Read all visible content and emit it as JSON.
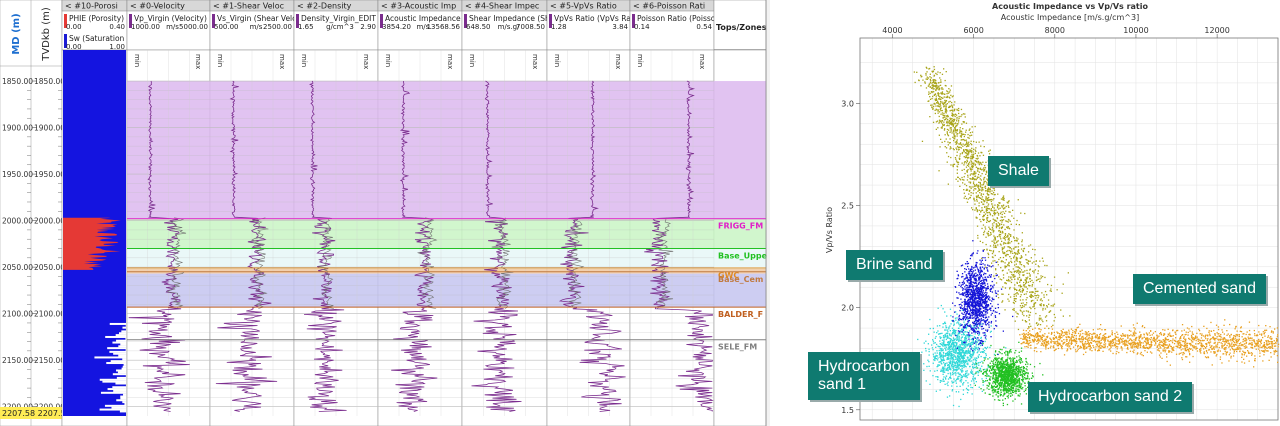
{
  "well_log": {
    "depth_header": {
      "md": "MD (m)",
      "tvd": "TVDkb (m)"
    },
    "depth_ticks": [
      1850,
      1900,
      1950,
      2000,
      2050,
      2100,
      2150,
      2200
    ],
    "depth_range": [
      1836,
      2210
    ],
    "bottom_readout": "2207.58  2207.5",
    "tracks": [
      {
        "title": "#10-Porosi",
        "curves": [
          {
            "name": "PHIE (Porosity)",
            "min": "0.00",
            "max": "0.40",
            "color": "#e53935"
          },
          {
            "name": "Sw (Saturation",
            "min": "0.00",
            "max": "1.00",
            "color": "#1a1ad4"
          }
        ]
      },
      {
        "title": "#0-Velocity",
        "curves": [
          {
            "name": "Vp_Virgin (Velocity)",
            "min": "1000.00",
            "unit": "m/s",
            "max": "5000.00"
          }
        ]
      },
      {
        "title": "#1-Shear Veloc",
        "curves": [
          {
            "name": "Vs_Virgin (Shear Velo",
            "min": "500.00",
            "unit": "m/s",
            "max": "2500.00"
          }
        ]
      },
      {
        "title": "#2-Density",
        "curves": [
          {
            "name": "Density_Virgin_EDIT",
            "min": "1.65",
            "unit": "g/cm^3",
            "max": "2.90"
          }
        ]
      },
      {
        "title": "#3-Acoustic Imp",
        "curves": [
          {
            "name": "Acoustic Impedance (",
            "min": "3854.20",
            "unit": "m/s.",
            "max": "13568.56"
          }
        ]
      },
      {
        "title": "#4-Shear Impec",
        "curves": [
          {
            "name": "Shear Impedance (Sh",
            "min": "648.50",
            "unit": "m/s.g/",
            "max": "7008.50"
          }
        ]
      },
      {
        "title": "#5-VpVs Ratio",
        "curves": [
          {
            "name": "VpVs Ratio (VpVs Ratio",
            "min": "1.28",
            "max": "3.84"
          }
        ]
      },
      {
        "title": "#6-Poisson Rati",
        "curves": [
          {
            "name": "Poisson Ratio (Poisso",
            "min": "0.14",
            "max": "0.54"
          }
        ]
      }
    ],
    "scale_min": "min",
    "scale_max": "max",
    "tops_title": "Tops/Zones",
    "zones": [
      {
        "top": 1850,
        "base": 1998,
        "color": "#dcb8ee"
      },
      {
        "top": 1998,
        "base": 2030,
        "color": "#c9f5c4"
      },
      {
        "top": 2030,
        "base": 2052,
        "color": "#e6f7f7"
      },
      {
        "top": 2052,
        "base": 2057,
        "color": "#f0c8a0"
      },
      {
        "top": 2057,
        "base": 2093,
        "color": "#c4c4f0"
      }
    ],
    "tops": [
      {
        "name": "FRIGG_FM",
        "depth": 1998,
        "color": "#e020c8"
      },
      {
        "name": "Base_Uppe",
        "depth": 2030,
        "color": "#22c022"
      },
      {
        "name": "GWC",
        "depth": 2051,
        "color": "#e08a20"
      },
      {
        "name": "Base_Cem",
        "depth": 2055,
        "color": "#c07a40"
      },
      {
        "name": "BALDER_F",
        "depth": 2093,
        "color": "#c06020"
      },
      {
        "name": "SELE_FM",
        "depth": 2128,
        "color": "#808080"
      }
    ]
  },
  "crossplot": {
    "title": "Acoustic Impedance vs Vp/Vs ratio",
    "xlabel": "Acoustic Impedance [m/s.g/cm^3]",
    "ylabel": "Vp/Vs Ratio",
    "xticks": [
      4000,
      6000,
      8000,
      10000,
      12000
    ],
    "yticks": [
      1.5,
      2.0,
      2.5,
      3.0
    ],
    "labels": {
      "shale": "Shale",
      "brine": "Brine sand",
      "cemented": "Cemented sand",
      "hc1": "Hydrocarbon\nsand 1",
      "hc2": "Hydrocarbon sand 2"
    }
  },
  "chart_data": {
    "type": "scatter",
    "title": "Acoustic Impedance vs Vp/Vs ratio",
    "xlabel": "Acoustic Impedance [m/s.g/cm^3]",
    "ylabel": "Vp/Vs Ratio",
    "xlim": [
      3200,
      13500
    ],
    "ylim": [
      1.45,
      3.32
    ],
    "grid": true,
    "series": [
      {
        "name": "Shale",
        "color": "#a9a51a",
        "clusters": [
          {
            "x": [
              4900,
              7600
            ],
            "y": [
              3.15,
              1.95
            ],
            "spread_x": 300,
            "spread_y": 0.04
          }
        ]
      },
      {
        "name": "Brine sand",
        "color": "#1414d8",
        "clusters": [
          {
            "x": 6050,
            "y": 2.04,
            "sx": 380,
            "sy": 0.16
          }
        ]
      },
      {
        "name": "Cemented sand",
        "color": "#e8a020",
        "clusters": [
          {
            "x": [
              7200,
              13500
            ],
            "y": [
              1.85,
              1.82
            ],
            "spread_x": 150,
            "spread_y": 0.04
          }
        ]
      },
      {
        "name": "Hydrocarbon sand 1",
        "color": "#30d8d8",
        "clusters": [
          {
            "x": 5600,
            "y": 1.78,
            "sx": 600,
            "sy": 0.14
          }
        ]
      },
      {
        "name": "Hydrocarbon sand 2",
        "color": "#22c022",
        "clusters": [
          {
            "x": 6800,
            "y": 1.67,
            "sx": 450,
            "sy": 0.09
          }
        ]
      }
    ]
  }
}
